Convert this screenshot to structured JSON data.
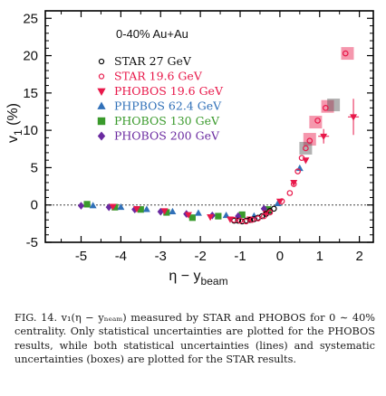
{
  "chart_data": {
    "type": "scatter",
    "xlabel": "η − y",
    "xlabel_sub": "beam",
    "ylabel": "v",
    "ylabel_sub": "1",
    "ylabel_unit": "(%)",
    "xlim": [
      -5.9,
      2.35
    ],
    "ylim": [
      -5,
      26
    ],
    "x_ticks": [
      -5,
      -4,
      -3,
      -2,
      -1,
      0,
      1,
      2
    ],
    "y_ticks": [
      -5,
      0,
      5,
      10,
      15,
      20,
      25
    ],
    "zero_line": true,
    "annotation": "0-40% Au+Au",
    "legend_position": "top-left",
    "series": [
      {
        "name": "STAR 27 GeV",
        "marker": "open-circle",
        "color": "#000000",
        "x": [
          -1.15,
          -1.05,
          -0.95,
          -0.85,
          -0.75,
          -0.65,
          -0.55,
          -0.45,
          -0.35,
          -0.25,
          -0.15
        ],
        "y": [
          -2.1,
          -2.1,
          -2.2,
          -2.1,
          -2.0,
          -1.9,
          -1.7,
          -1.5,
          -1.2,
          -0.8,
          -0.5
        ]
      },
      {
        "name": "STAR 19.6 GeV",
        "marker": "open-circle",
        "color": "#e8184a",
        "x": [
          -1.15,
          -1.0,
          -0.85,
          -0.7,
          -0.55,
          -0.4,
          -0.25,
          0.05,
          0.25,
          0.35,
          0.45,
          0.55,
          0.65,
          0.75,
          0.95,
          1.15,
          1.65
        ],
        "y": [
          -2.0,
          -2.1,
          -2.2,
          -2.0,
          -1.8,
          -1.5,
          -1.0,
          0.5,
          1.6,
          2.8,
          4.5,
          6.3,
          7.6,
          8.6,
          11.3,
          13.0,
          20.3
        ]
      },
      {
        "name": "PHOBOS 19.6 GeV",
        "marker": "triangle-down",
        "color": "#e8184a",
        "x": [
          -4.2,
          -3.6,
          -2.9,
          -2.3,
          -1.75,
          -1.25,
          -0.75,
          -0.35,
          0.0,
          0.35,
          0.65,
          1.1,
          1.85
        ],
        "y": [
          -0.2,
          -0.5,
          -0.8,
          -1.3,
          -1.6,
          -1.9,
          -1.9,
          -1.1,
          0.5,
          3.0,
          6.0,
          9.2,
          11.8
        ]
      },
      {
        "name": "PHPBOS 62.4 GeV",
        "marker": "triangle-up",
        "color": "#3070b8",
        "x": [
          -4.7,
          -4.0,
          -3.35,
          -2.7,
          -2.05,
          -1.35,
          -0.65,
          -0.05,
          0.5
        ],
        "y": [
          -0.1,
          -0.3,
          -0.6,
          -0.9,
          -1.1,
          -1.4,
          -1.5,
          0.2,
          4.9
        ]
      },
      {
        "name": "PHOBOS 130 GeV",
        "marker": "square",
        "color": "#3a9a2c",
        "x": [
          -4.85,
          -4.15,
          -3.5,
          -2.85,
          -2.2,
          -1.55,
          -0.95,
          -0.3
        ],
        "y": [
          0.1,
          -0.3,
          -0.6,
          -1.0,
          -1.7,
          -1.5,
          -1.3,
          -0.6
        ]
      },
      {
        "name": "PHOBOS 200 GeV",
        "marker": "diamond",
        "color": "#6a2aa0",
        "x": [
          -5.0,
          -4.3,
          -3.65,
          -3.0,
          -2.35,
          -1.7,
          -1.05,
          -0.4
        ],
        "y": [
          -0.1,
          -0.3,
          -0.6,
          -0.9,
          -1.2,
          -1.4,
          -1.5,
          -0.5
        ]
      }
    ],
    "star_boxes": [
      {
        "x": 1.7,
        "y": 20.3,
        "color": "#e8184a"
      },
      {
        "x": 1.2,
        "y": 13.2,
        "color": "#e8184a"
      },
      {
        "x": 1.35,
        "y": 13.4,
        "color": "#555555"
      },
      {
        "x": 0.9,
        "y": 11.1,
        "color": "#e8184a"
      },
      {
        "x": 0.75,
        "y": 8.8,
        "color": "#e8184a"
      },
      {
        "x": 0.65,
        "y": 7.6,
        "color": "#555555"
      }
    ]
  },
  "caption": "FIG. 14. v₁(η − yₙₑₐₘ) measured by STAR and PHOBOS for 0 ∼ 40% centrality. Only statistical uncertainties are plotted for the PHOBOS results, while both statistical uncertainties (lines) and systematic uncertainties (boxes) are plotted for the STAR results."
}
